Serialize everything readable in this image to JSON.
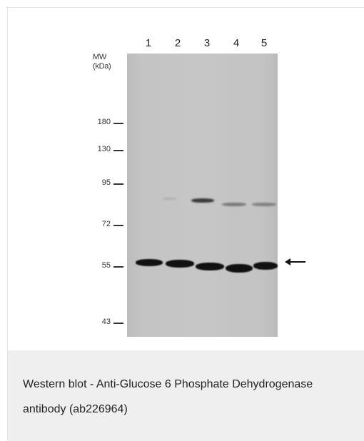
{
  "figure": {
    "lanes": [
      "1",
      "2",
      "3",
      "4",
      "5"
    ],
    "mw_title_line1": "MW",
    "mw_title_line2": "(kDa)",
    "markers": [
      "180",
      "130",
      "95",
      "72",
      "55",
      "43"
    ],
    "caption": "Western blot - Anti-Glucose 6 Phosphate Dehydrogenase antibody (ab226964)"
  },
  "icons": {
    "band_arrow": "left-arrow-icon"
  }
}
